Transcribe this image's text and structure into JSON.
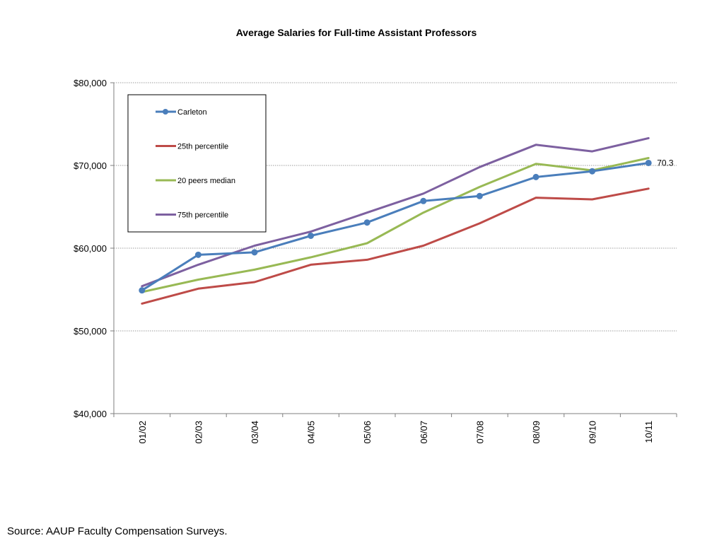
{
  "chart_data": {
    "type": "line",
    "title": "Average Salaries for Full-time Assistant Professors",
    "categories": [
      "01/02",
      "02/03",
      "03/04",
      "04/05",
      "05/06",
      "06/07",
      "07/08",
      "08/09",
      "09/10",
      "10/11"
    ],
    "ylim": [
      40000,
      80000
    ],
    "y_ticks": [
      40000,
      50000,
      60000,
      70000,
      80000
    ],
    "y_tick_labels": [
      "$40,000",
      "$50,000",
      "$60,000",
      "$70,000",
      "$80,000"
    ],
    "grid": "horizontal dotted",
    "legend_position": "top-left",
    "series": [
      {
        "name": "Carleton",
        "color": "#4a7ebb",
        "markers": true,
        "values": [
          54900,
          59200,
          59500,
          61500,
          63100,
          65700,
          66300,
          68600,
          69300,
          70300
        ]
      },
      {
        "name": "25th percentile",
        "color": "#be4b48",
        "markers": false,
        "values": [
          53300,
          55100,
          55900,
          58000,
          58600,
          60300,
          63000,
          66100,
          65900,
          67200
        ]
      },
      {
        "name": "20 peers median",
        "color": "#98b954",
        "markers": false,
        "values": [
          54700,
          56200,
          57400,
          58900,
          60600,
          64300,
          67400,
          70200,
          69400,
          70900
        ]
      },
      {
        "name": "75th percentile",
        "color": "#7d60a0",
        "markers": false,
        "values": [
          55400,
          58000,
          60300,
          62000,
          64300,
          66600,
          69800,
          72500,
          71700,
          73300
        ]
      }
    ],
    "annotation": {
      "text": "70.3",
      "series": "Carleton",
      "category": "10/11"
    }
  },
  "footer": {
    "source": "Source:  AAUP Faculty Compensation Surveys."
  }
}
